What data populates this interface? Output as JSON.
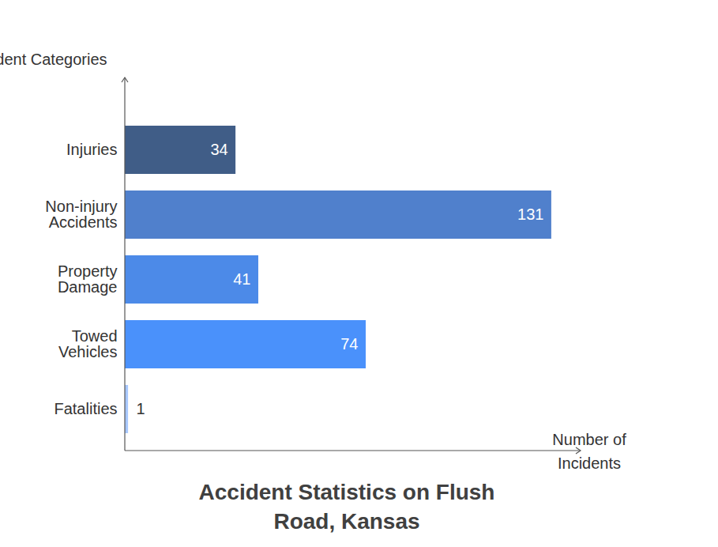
{
  "chart_data": {
    "type": "bar",
    "orientation": "horizontal",
    "title": "Accident Statistics on Flush Road, Kansas",
    "xlabel": "Number of Incidents",
    "ylabel": "Accident Categories",
    "categories": [
      "Injuries",
      "Non-injury Accidents",
      "Property Damage",
      "Towed Vehicles",
      "Fatalities"
    ],
    "values": [
      34,
      131,
      41,
      74,
      1
    ],
    "colors": [
      "#405d87",
      "#5080cc",
      "#4c8ae8",
      "#4a91fb",
      "#a8c8ff"
    ],
    "xlim": [
      0,
      140
    ],
    "tick_labels": "y",
    "data_labels": true,
    "grid": false
  }
}
